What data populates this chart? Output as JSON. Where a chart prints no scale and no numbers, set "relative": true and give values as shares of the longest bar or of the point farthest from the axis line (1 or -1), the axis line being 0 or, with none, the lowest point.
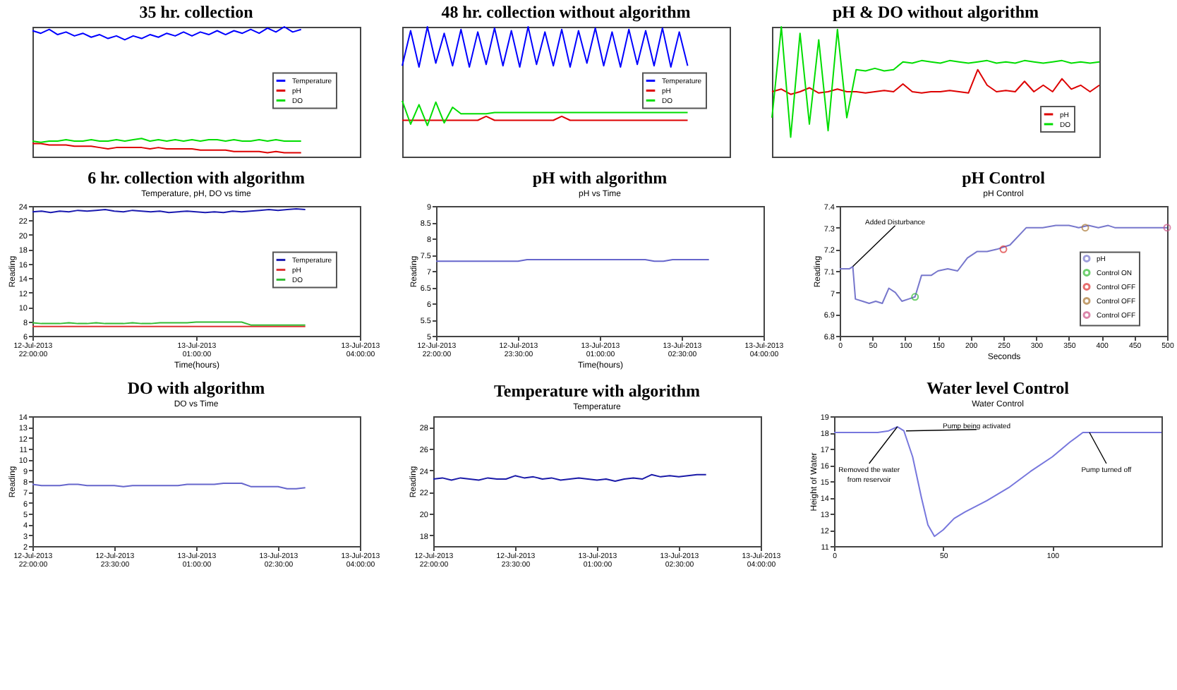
{
  "chart_data": [
    {
      "type": "line",
      "title": "35 hr. collection",
      "relative": true,
      "legend": "right",
      "categories": [
        null,
        null,
        null,
        null,
        null,
        null,
        null,
        null,
        null,
        null,
        null,
        null,
        null,
        null,
        null,
        null,
        null,
        null,
        null,
        null,
        null,
        null,
        null,
        null,
        null,
        null,
        null,
        null,
        null,
        null,
        null,
        null,
        null,
        null,
        null,
        null,
        null,
        null,
        null,
        null
      ],
      "series": [
        {
          "name": "Temperature",
          "color": "#0000ff",
          "values": [
            0.97,
            0.95,
            0.98,
            0.94,
            0.96,
            0.93,
            0.95,
            0.92,
            0.94,
            0.91,
            0.93,
            0.9,
            0.93,
            0.91,
            0.94,
            0.92,
            0.95,
            0.93,
            0.96,
            0.93,
            0.96,
            0.94,
            0.97,
            0.94,
            0.97,
            0.95,
            0.98,
            0.95,
            0.99,
            0.96,
            1,
            0.96,
            0.98,
            null,
            null,
            null,
            null,
            null,
            null,
            null
          ]
        },
        {
          "name": "pH",
          "color": "#dd0000",
          "values": [
            0.1,
            0.1,
            0.09,
            0.09,
            0.09,
            0.08,
            0.08,
            0.08,
            0.07,
            0.06,
            0.07,
            0.07,
            0.07,
            0.07,
            0.06,
            0.07,
            0.06,
            0.06,
            0.06,
            0.06,
            0.05,
            0.05,
            0.05,
            0.05,
            0.04,
            0.04,
            0.04,
            0.04,
            0.03,
            0.04,
            0.03,
            0.03,
            0.03,
            null,
            null,
            null,
            null,
            null,
            null,
            null
          ]
        },
        {
          "name": "DO",
          "color": "#00dd00",
          "values": [
            0.12,
            0.11,
            0.12,
            0.12,
            0.13,
            0.12,
            0.12,
            0.13,
            0.12,
            0.12,
            0.13,
            0.12,
            0.13,
            0.14,
            0.12,
            0.13,
            0.12,
            0.13,
            0.12,
            0.13,
            0.12,
            0.13,
            0.13,
            0.12,
            0.13,
            0.12,
            0.12,
            0.13,
            0.12,
            0.13,
            0.12,
            0.12,
            0.12,
            null,
            null,
            null,
            null,
            null,
            null,
            null
          ]
        }
      ]
    },
    {
      "type": "line",
      "title": "48 hr. collection without algorithm",
      "relative": true,
      "legend": "right",
      "categories": [
        null,
        null,
        null,
        null,
        null,
        null,
        null,
        null,
        null,
        null,
        null,
        null,
        null,
        null,
        null,
        null,
        null,
        null,
        null,
        null,
        null,
        null,
        null,
        null,
        null,
        null,
        null,
        null,
        null,
        null,
        null,
        null,
        null,
        null,
        null,
        null,
        null,
        null,
        null,
        null
      ],
      "series": [
        {
          "name": "Temperature",
          "color": "#0000ff",
          "values": [
            0.7,
            0.97,
            0.69,
            1,
            0.72,
            0.95,
            0.7,
            0.98,
            0.69,
            0.96,
            0.71,
            0.99,
            0.7,
            0.97,
            0.69,
            1,
            0.71,
            0.96,
            0.7,
            0.98,
            0.69,
            0.97,
            0.72,
            0.99,
            0.7,
            0.96,
            0.69,
            0.98,
            0.71,
            0.97,
            0.7,
            0.99,
            0.69,
            0.96,
            0.7,
            null,
            null,
            null,
            null,
            null
          ]
        },
        {
          "name": "pH",
          "color": "#dd0000",
          "values": [
            0.28,
            0.28,
            0.28,
            0.28,
            0.28,
            0.28,
            0.28,
            0.28,
            0.28,
            0.28,
            0.31,
            0.28,
            0.28,
            0.28,
            0.28,
            0.28,
            0.28,
            0.28,
            0.28,
            0.31,
            0.28,
            0.28,
            0.28,
            0.28,
            0.28,
            0.28,
            0.28,
            0.28,
            0.28,
            0.28,
            0.28,
            0.28,
            0.28,
            0.28,
            0.28,
            null,
            null,
            null,
            null,
            null
          ]
        },
        {
          "name": "DO",
          "color": "#00dd00",
          "values": [
            0.43,
            0.25,
            0.4,
            0.24,
            0.42,
            0.26,
            0.38,
            0.33,
            0.33,
            0.33,
            0.33,
            0.34,
            0.34,
            0.34,
            0.34,
            0.34,
            0.34,
            0.34,
            0.34,
            0.34,
            0.34,
            0.34,
            0.34,
            0.34,
            0.34,
            0.34,
            0.34,
            0.34,
            0.34,
            0.34,
            0.34,
            0.34,
            0.34,
            0.34,
            0.34,
            null,
            null,
            null,
            null,
            null
          ]
        }
      ]
    },
    {
      "type": "line",
      "title": "pH & DO without algorithm",
      "relative": true,
      "legend": "bottom right",
      "categories": [
        null,
        null,
        null,
        null,
        null,
        null,
        null,
        null,
        null,
        null,
        null,
        null,
        null,
        null,
        null,
        null,
        null,
        null,
        null,
        null,
        null,
        null,
        null,
        null,
        null,
        null,
        null,
        null,
        null,
        null,
        null,
        null,
        null,
        null,
        null,
        null
      ],
      "series": [
        {
          "name": "pH",
          "color": "#dd0000",
          "values": [
            0.5,
            0.52,
            0.48,
            0.5,
            0.53,
            0.49,
            0.5,
            0.52,
            0.5,
            0.5,
            0.49,
            0.5,
            0.51,
            0.5,
            0.56,
            0.5,
            0.49,
            0.5,
            0.5,
            0.51,
            0.5,
            0.49,
            0.67,
            0.55,
            0.5,
            0.51,
            0.5,
            0.58,
            0.5,
            0.55,
            0.5,
            0.6,
            0.52,
            0.55,
            0.5,
            0.55
          ]
        },
        {
          "name": "DO",
          "color": "#00dd00",
          "values": [
            0.3,
            1,
            0.15,
            0.95,
            0.25,
            0.9,
            0.2,
            0.98,
            0.3,
            0.67,
            0.66,
            0.68,
            0.66,
            0.67,
            0.73,
            0.72,
            0.74,
            0.73,
            0.72,
            0.74,
            0.73,
            0.72,
            0.73,
            0.74,
            0.72,
            0.73,
            0.72,
            0.74,
            0.73,
            0.72,
            0.73,
            0.74,
            0.72,
            0.73,
            0.72,
            0.73
          ]
        }
      ]
    },
    {
      "type": "line",
      "title": "6 hr. collection with algorithm",
      "subtitle": "Temperature, pH, DO vs time",
      "xlabel": "Time(hours)",
      "ylabel": "Reading",
      "legend": "right",
      "x": [
        "2013-07-12T22:00",
        "2013-07-12T22:10",
        "2013-07-12T22:20",
        "2013-07-12T22:30",
        "2013-07-12T22:40",
        "2013-07-12T22:50",
        "2013-07-12T23:00",
        "2013-07-12T23:10",
        "2013-07-12T23:20",
        "2013-07-12T23:30",
        "2013-07-12T23:40",
        "2013-07-12T23:50",
        "2013-07-13T00:00",
        "2013-07-13T00:10",
        "2013-07-13T00:20",
        "2013-07-13T00:30",
        "2013-07-13T00:40",
        "2013-07-13T00:50",
        "2013-07-13T01:00",
        "2013-07-13T01:10",
        "2013-07-13T01:20",
        "2013-07-13T01:30",
        "2013-07-13T01:40",
        "2013-07-13T01:50",
        "2013-07-13T02:00",
        "2013-07-13T02:10",
        "2013-07-13T02:20",
        "2013-07-13T02:30",
        "2013-07-13T02:40",
        "2013-07-13T02:50",
        "2013-07-13T03:00"
      ],
      "xlim": [
        "2013-07-12T22:00",
        "2013-07-13T04:00"
      ],
      "xticks": [
        {
          "value": "2013-07-12T22:00",
          "label": "12-Jul-2013 22:00:00"
        },
        {
          "value": "2013-07-13T01:00",
          "label": "13-Jul-2013 01:00:00"
        },
        {
          "value": "2013-07-13T04:00",
          "label": "13-Jul-2013 04:00:00"
        }
      ],
      "ylim": [
        6,
        24
      ],
      "yticks": [
        6,
        8,
        10,
        12,
        14,
        16,
        18,
        20,
        22,
        24
      ],
      "series": [
        {
          "name": "Temperature",
          "color": "#1a1ab0",
          "values": [
            23.2,
            23.3,
            23.1,
            23.3,
            23.2,
            23.4,
            23.3,
            23.4,
            23.5,
            23.3,
            23.2,
            23.4,
            23.3,
            23.2,
            23.3,
            23.1,
            23.2,
            23.3,
            23.2,
            23.1,
            23.2,
            23.1,
            23.3,
            23.2,
            23.3,
            23.4,
            23.5,
            23.4,
            23.5,
            23.6,
            23.5
          ]
        },
        {
          "name": "pH",
          "color": "#dd3333",
          "values": [
            7.3,
            7.3,
            7.3,
            7.3,
            7.3,
            7.3,
            7.3,
            7.3,
            7.3,
            7.3,
            7.3,
            7.3,
            7.3,
            7.3,
            7.3,
            7.3,
            7.3,
            7.3,
            7.3,
            7.3,
            7.3,
            7.3,
            7.3,
            7.3,
            7.3,
            7.3,
            7.3,
            7.3,
            7.3,
            7.3,
            7.3
          ]
        },
        {
          "name": "DO",
          "color": "#33bb33",
          "values": [
            7.8,
            7.7,
            7.7,
            7.7,
            7.8,
            7.7,
            7.7,
            7.8,
            7.7,
            7.7,
            7.7,
            7.8,
            7.7,
            7.7,
            7.8,
            7.8,
            7.8,
            7.8,
            7.9,
            7.9,
            7.9,
            7.9,
            7.9,
            7.9,
            7.5,
            7.5,
            7.5,
            7.5,
            7.5,
            7.5,
            7.5
          ]
        }
      ]
    },
    {
      "type": "line",
      "title": "pH with algorithm",
      "subtitle": "pH vs Time",
      "xlabel": "Time(hours)",
      "ylabel": "Reading",
      "x": [
        "2013-07-12T22:00",
        "2013-07-12T22:10",
        "2013-07-12T22:20",
        "2013-07-12T22:30",
        "2013-07-12T22:40",
        "2013-07-12T22:50",
        "2013-07-12T23:00",
        "2013-07-12T23:10",
        "2013-07-12T23:20",
        "2013-07-12T23:30",
        "2013-07-12T23:40",
        "2013-07-12T23:50",
        "2013-07-13T00:00",
        "2013-07-13T00:10",
        "2013-07-13T00:20",
        "2013-07-13T00:30",
        "2013-07-13T00:40",
        "2013-07-13T00:50",
        "2013-07-13T01:00",
        "2013-07-13T01:10",
        "2013-07-13T01:20",
        "2013-07-13T01:30",
        "2013-07-13T01:40",
        "2013-07-13T01:50",
        "2013-07-13T02:00",
        "2013-07-13T02:10",
        "2013-07-13T02:20",
        "2013-07-13T02:30",
        "2013-07-13T02:40",
        "2013-07-13T02:50",
        "2013-07-13T03:00"
      ],
      "xlim": [
        "2013-07-12T22:00",
        "2013-07-13T04:00"
      ],
      "xticks": [
        {
          "value": "2013-07-12T22:00",
          "label": "12-Jul-2013 22:00:00"
        },
        {
          "value": "2013-07-12T23:30",
          "label": "12-Jul-2013 23:30:00"
        },
        {
          "value": "2013-07-13T01:00",
          "label": "13-Jul-2013 01:00:00"
        },
        {
          "value": "2013-07-13T02:30",
          "label": "13-Jul-2013 02:30:00"
        },
        {
          "value": "2013-07-13T04:00",
          "label": "13-Jul-2013 04:00:00"
        }
      ],
      "ylim": [
        5,
        9
      ],
      "yticks": [
        5,
        5.5,
        6,
        6.5,
        7,
        7.5,
        8,
        8.5,
        9
      ],
      "series": [
        {
          "color": "#6666cc",
          "values": [
            7.3,
            7.3,
            7.3,
            7.3,
            7.3,
            7.3,
            7.3,
            7.3,
            7.3,
            7.3,
            7.35,
            7.35,
            7.35,
            7.35,
            7.35,
            7.35,
            7.35,
            7.35,
            7.35,
            7.35,
            7.35,
            7.35,
            7.35,
            7.35,
            7.3,
            7.3,
            7.35,
            7.35,
            7.35,
            7.35,
            7.35
          ]
        }
      ]
    },
    {
      "type": "line",
      "title": "pH Control",
      "subtitle": "pH Control",
      "ylabel": "Reading",
      "xlabel": "Seconds",
      "legend": "right",
      "xlim": [
        0,
        500
      ],
      "xticks": [
        0,
        50,
        100,
        150,
        200,
        250,
        300,
        350,
        400,
        450,
        500
      ],
      "ylim": [
        6.8,
        7.4
      ],
      "yticks": [
        6.8,
        6.9,
        7,
        7.1,
        7.2,
        7.3,
        7.4
      ],
      "annotations": [
        {
          "text": "Added Disturbance",
          "x": 20,
          "y": 7.12
        }
      ],
      "series": [
        {
          "name": "pH",
          "color": "#7777cc",
          "x": [
            0,
            15,
            20,
            24,
            35,
            45,
            55,
            65,
            75,
            85,
            95,
            105,
            115,
            125,
            140,
            150,
            165,
            180,
            195,
            210,
            225,
            240,
            250,
            260,
            285,
            310,
            330,
            350,
            365,
            380,
            395,
            410,
            420,
            500
          ],
          "values": [
            7.11,
            7.11,
            7.12,
            6.97,
            6.96,
            6.95,
            6.96,
            6.95,
            7.02,
            7,
            6.96,
            6.97,
            6.98,
            7.08,
            7.08,
            7.1,
            7.11,
            7.1,
            7.16,
            7.19,
            7.19,
            7.2,
            7.21,
            7.22,
            7.3,
            7.3,
            7.31,
            7.31,
            7.3,
            7.31,
            7.3,
            7.31,
            7.3,
            7.3
          ]
        },
        {
          "name": "Control ON",
          "type": "scatter",
          "marker": "circle",
          "color": "#33bb33",
          "x": [
            115
          ],
          "values": [
            6.98
          ]
        },
        {
          "name": "Control OFF",
          "type": "scatter",
          "marker": "circle",
          "color": "#dd3333",
          "x": [
            250
          ],
          "values": [
            7.2
          ]
        },
        {
          "name": "Control OFF",
          "type": "scatter",
          "marker": "circle",
          "color": "#aa7733",
          "x": [
            375
          ],
          "values": [
            7.3
          ]
        },
        {
          "name": "Control OFF",
          "type": "scatter",
          "marker": "circle",
          "color": "#cc5588",
          "x": [
            500
          ],
          "values": [
            7.3
          ]
        }
      ]
    },
    {
      "type": "line",
      "title": "DO with algorithm",
      "subtitle": "DO vs Time",
      "ylabel": "Reading",
      "x": [
        "2013-07-12T22:00",
        "2013-07-12T22:10",
        "2013-07-12T22:20",
        "2013-07-12T22:30",
        "2013-07-12T22:40",
        "2013-07-12T22:50",
        "2013-07-12T23:00",
        "2013-07-12T23:10",
        "2013-07-12T23:20",
        "2013-07-12T23:30",
        "2013-07-12T23:40",
        "2013-07-12T23:50",
        "2013-07-13T00:00",
        "2013-07-13T00:10",
        "2013-07-13T00:20",
        "2013-07-13T00:30",
        "2013-07-13T00:40",
        "2013-07-13T00:50",
        "2013-07-13T01:00",
        "2013-07-13T01:10",
        "2013-07-13T01:20",
        "2013-07-13T01:30",
        "2013-07-13T01:40",
        "2013-07-13T01:50",
        "2013-07-13T02:00",
        "2013-07-13T02:10",
        "2013-07-13T02:20",
        "2013-07-13T02:30",
        "2013-07-13T02:40",
        "2013-07-13T02:50",
        "2013-07-13T03:00"
      ],
      "xlim": [
        "2013-07-12T22:00",
        "2013-07-13T04:00"
      ],
      "xticks": [
        {
          "value": "2013-07-12T22:00",
          "label": "12-Jul-2013 22:00:00"
        },
        {
          "value": "2013-07-12T23:30",
          "label": "12-Jul-2013 23:30:00"
        },
        {
          "value": "2013-07-13T01:00",
          "label": "13-Jul-2013 01:00:00"
        },
        {
          "value": "2013-07-13T02:30",
          "label": "13-Jul-2013 02:30:00"
        },
        {
          "value": "2013-07-13T04:00",
          "label": "13-Jul-2013 04:00:00"
        }
      ],
      "ylim": [
        2,
        14
      ],
      "yticks": [
        2,
        3,
        4,
        5,
        6,
        7,
        8,
        9,
        10,
        11,
        12,
        13,
        14
      ],
      "series": [
        {
          "color": "#6666cc",
          "values": [
            7.7,
            7.6,
            7.6,
            7.6,
            7.7,
            7.7,
            7.6,
            7.6,
            7.6,
            7.6,
            7.5,
            7.6,
            7.6,
            7.6,
            7.6,
            7.6,
            7.6,
            7.7,
            7.7,
            7.7,
            7.7,
            7.8,
            7.8,
            7.8,
            7.5,
            7.5,
            7.5,
            7.5,
            7.3,
            7.3,
            7.4
          ]
        }
      ]
    },
    {
      "type": "line",
      "title": "Temperature with algorithm",
      "subtitle": "Temperature",
      "ylabel": "Reading",
      "x": [
        "2013-07-12T22:00",
        "2013-07-12T22:10",
        "2013-07-12T22:20",
        "2013-07-12T22:30",
        "2013-07-12T22:40",
        "2013-07-12T22:50",
        "2013-07-12T23:00",
        "2013-07-12T23:10",
        "2013-07-12T23:20",
        "2013-07-12T23:30",
        "2013-07-12T23:40",
        "2013-07-12T23:50",
        "2013-07-13T00:00",
        "2013-07-13T00:10",
        "2013-07-13T00:20",
        "2013-07-13T00:30",
        "2013-07-13T00:40",
        "2013-07-13T00:50",
        "2013-07-13T01:00",
        "2013-07-13T01:10",
        "2013-07-13T01:20",
        "2013-07-13T01:30",
        "2013-07-13T01:40",
        "2013-07-13T01:50",
        "2013-07-13T02:00",
        "2013-07-13T02:10",
        "2013-07-13T02:20",
        "2013-07-13T02:30",
        "2013-07-13T02:40",
        "2013-07-13T02:50",
        "2013-07-13T03:00"
      ],
      "xlim": [
        "2013-07-12T22:00",
        "2013-07-13T04:00"
      ],
      "xticks": [
        {
          "value": "2013-07-12T22:00",
          "label": "12-Jul-2013 22:00:00"
        },
        {
          "value": "2013-07-12T23:30",
          "label": "12-Jul-2013 23:30:00"
        },
        {
          "value": "2013-07-13T01:00",
          "label": "13-Jul-2013 01:00:00"
        },
        {
          "value": "2013-07-13T02:30",
          "label": "13-Jul-2013 02:30:00"
        },
        {
          "value": "2013-07-13T04:00",
          "label": "13-Jul-2013 04:00:00"
        }
      ],
      "ylim": [
        17,
        29
      ],
      "yticks": [
        18,
        20,
        22,
        24,
        26,
        28
      ],
      "series": [
        {
          "color": "#1a1aa8",
          "values": [
            23.2,
            23.3,
            23.1,
            23.3,
            23.2,
            23.1,
            23.3,
            23.2,
            23.2,
            23.5,
            23.3,
            23.4,
            23.2,
            23.3,
            23.1,
            23.2,
            23.3,
            23.2,
            23.1,
            23.2,
            23,
            23.2,
            23.3,
            23.2,
            23.6,
            23.4,
            23.5,
            23.4,
            23.5,
            23.6,
            23.6
          ]
        }
      ]
    },
    {
      "type": "line",
      "title": "Water level Control",
      "subtitle": "Water Control",
      "ylabel": "Height of Water",
      "xlim": [
        0,
        150
      ],
      "xticks": [
        0,
        50,
        100
      ],
      "ylim": [
        11,
        19
      ],
      "yticks": [
        11,
        12,
        13,
        14,
        15,
        16,
        17,
        18,
        19
      ],
      "annotations": [
        {
          "text": "Removed the water from reservoir",
          "x": 29,
          "y": 18.35
        },
        {
          "text": "Pump being activated",
          "x": 33,
          "y": 18.1
        },
        {
          "text": "Pump turned off",
          "x": 117,
          "y": 18
        }
      ],
      "x": [
        0,
        10,
        20,
        25,
        29,
        32,
        36,
        40,
        43,
        46,
        50,
        55,
        60,
        70,
        80,
        90,
        100,
        108,
        114,
        118,
        130,
        150
      ],
      "series": [
        {
          "color": "#7777dd",
          "values": [
            18,
            18,
            18,
            18.1,
            18.35,
            18.1,
            16.5,
            14,
            12.3,
            11.6,
            12,
            12.7,
            13.1,
            13.8,
            14.6,
            15.6,
            16.5,
            17.4,
            18,
            18,
            18,
            18
          ]
        }
      ]
    }
  ]
}
